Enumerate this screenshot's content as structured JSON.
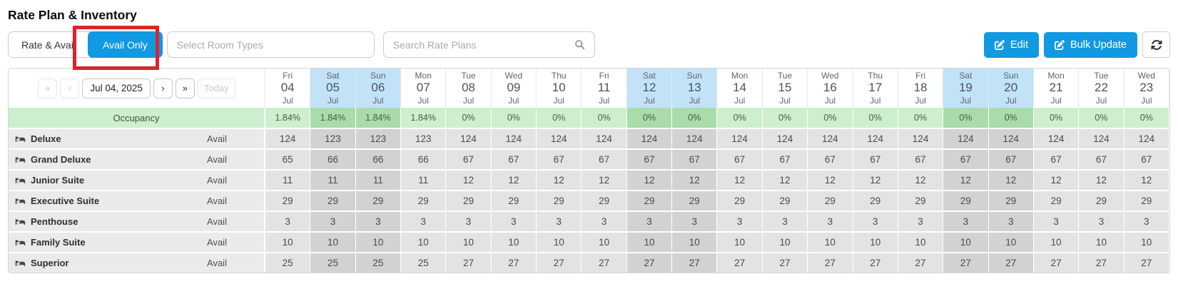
{
  "title": "Rate Plan & Inventory",
  "toolbar": {
    "view_toggle": {
      "rate_avail": "Rate & Avail",
      "avail_only": "Avail Only",
      "active": "Avail Only"
    },
    "room_types_placeholder": "Select Room Types",
    "search_placeholder": "Search Rate Plans",
    "edit": "Edit",
    "bulk_update": "Bulk Update"
  },
  "date_nav": {
    "first": "«",
    "prev": "‹",
    "current_date": "Jul 04, 2025",
    "next": "›",
    "last": "»",
    "today": "Today"
  },
  "grid": {
    "occupancy_label": "Occupancy",
    "avail_label": "Avail",
    "dates": [
      {
        "dow": "Fri",
        "day": "04",
        "month": "Jul",
        "weekend": false
      },
      {
        "dow": "Sat",
        "day": "05",
        "month": "Jul",
        "weekend": true
      },
      {
        "dow": "Sun",
        "day": "06",
        "month": "Jul",
        "weekend": true
      },
      {
        "dow": "Mon",
        "day": "07",
        "month": "Jul",
        "weekend": false
      },
      {
        "dow": "Tue",
        "day": "08",
        "month": "Jul",
        "weekend": false
      },
      {
        "dow": "Wed",
        "day": "09",
        "month": "Jul",
        "weekend": false
      },
      {
        "dow": "Thu",
        "day": "10",
        "month": "Jul",
        "weekend": false
      },
      {
        "dow": "Fri",
        "day": "11",
        "month": "Jul",
        "weekend": false
      },
      {
        "dow": "Sat",
        "day": "12",
        "month": "Jul",
        "weekend": true
      },
      {
        "dow": "Sun",
        "day": "13",
        "month": "Jul",
        "weekend": true
      },
      {
        "dow": "Mon",
        "day": "14",
        "month": "Jul",
        "weekend": false
      },
      {
        "dow": "Tue",
        "day": "15",
        "month": "Jul",
        "weekend": false
      },
      {
        "dow": "Wed",
        "day": "16",
        "month": "Jul",
        "weekend": false
      },
      {
        "dow": "Thu",
        "day": "17",
        "month": "Jul",
        "weekend": false
      },
      {
        "dow": "Fri",
        "day": "18",
        "month": "Jul",
        "weekend": false
      },
      {
        "dow": "Sat",
        "day": "19",
        "month": "Jul",
        "weekend": true
      },
      {
        "dow": "Sun",
        "day": "20",
        "month": "Jul",
        "weekend": true
      },
      {
        "dow": "Mon",
        "day": "21",
        "month": "Jul",
        "weekend": false
      },
      {
        "dow": "Tue",
        "day": "22",
        "month": "Jul",
        "weekend": false
      },
      {
        "dow": "Wed",
        "day": "23",
        "month": "Jul",
        "weekend": false
      }
    ],
    "occupancy": [
      "1.84%",
      "1.84%",
      "1.84%",
      "1.84%",
      "0%",
      "0%",
      "0%",
      "0%",
      "0%",
      "0%",
      "0%",
      "0%",
      "0%",
      "0%",
      "0%",
      "0%",
      "0%",
      "0%",
      "0%",
      "0%"
    ],
    "rooms": [
      {
        "name": "Deluxe",
        "avail": [
          124,
          123,
          123,
          123,
          124,
          124,
          124,
          124,
          124,
          124,
          124,
          124,
          124,
          124,
          124,
          124,
          124,
          124,
          124,
          124
        ]
      },
      {
        "name": "Grand Deluxe",
        "avail": [
          65,
          66,
          66,
          66,
          67,
          67,
          67,
          67,
          67,
          67,
          67,
          67,
          67,
          67,
          67,
          67,
          67,
          67,
          67,
          67
        ]
      },
      {
        "name": "Junior Suite",
        "avail": [
          11,
          11,
          11,
          11,
          12,
          12,
          12,
          12,
          12,
          12,
          12,
          12,
          12,
          12,
          12,
          12,
          12,
          12,
          12,
          12
        ]
      },
      {
        "name": "Executive Suite",
        "avail": [
          29,
          29,
          29,
          29,
          29,
          29,
          29,
          29,
          29,
          29,
          29,
          29,
          29,
          29,
          29,
          29,
          29,
          29,
          29,
          29
        ]
      },
      {
        "name": "Penthouse",
        "avail": [
          3,
          3,
          3,
          3,
          3,
          3,
          3,
          3,
          3,
          3,
          3,
          3,
          3,
          3,
          3,
          3,
          3,
          3,
          3,
          3
        ]
      },
      {
        "name": "Family Suite",
        "avail": [
          10,
          10,
          10,
          10,
          10,
          10,
          10,
          10,
          10,
          10,
          10,
          10,
          10,
          10,
          10,
          10,
          10,
          10,
          10,
          10
        ]
      },
      {
        "name": "Superior",
        "avail": [
          25,
          25,
          25,
          25,
          27,
          27,
          27,
          27,
          27,
          27,
          27,
          27,
          27,
          27,
          27,
          27,
          27,
          27,
          27,
          27
        ]
      }
    ]
  },
  "colors": {
    "accent_blue": "#1199e2",
    "weekend_header_blue": "#c2e2f8",
    "occupancy_green": "#cdefcd",
    "occupancy_weekend_green": "#a9dcaa",
    "cell_gray": "#e3e3e3",
    "cell_weekend_gray": "#d2d2d2",
    "annotation_red": "#d7262c"
  }
}
